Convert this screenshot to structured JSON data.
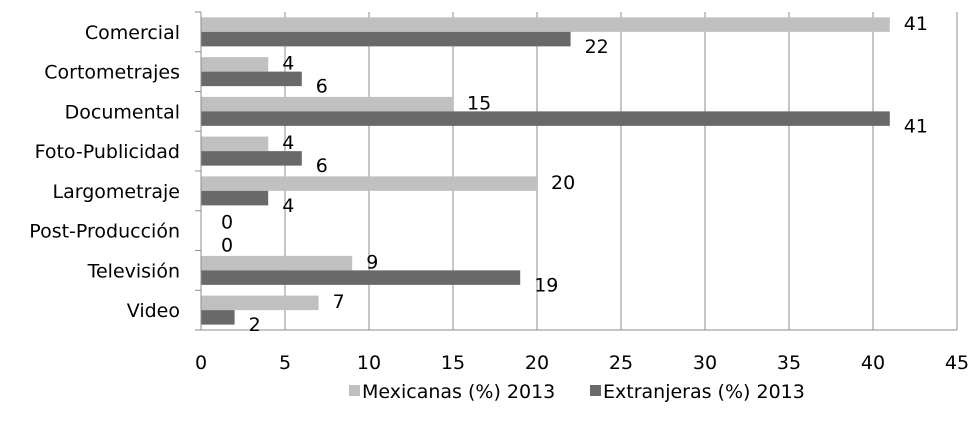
{
  "chart_data": {
    "type": "bar",
    "orientation": "horizontal",
    "categories": [
      "Comercial",
      "Cortometrajes",
      "Documental",
      "Foto-Publicidad",
      "Largometraje",
      "Post-Producción",
      "Televisión",
      "Video"
    ],
    "series": [
      {
        "name": "Mexicanas (%) 2013",
        "values": [
          41,
          4,
          15,
          4,
          20,
          0,
          9,
          7
        ],
        "color": "#c0c0c0"
      },
      {
        "name": "Extranjeras (%) 2013",
        "values": [
          22,
          6,
          41,
          6,
          4,
          0,
          19,
          2
        ],
        "color": "#696969"
      }
    ],
    "xlim": [
      0,
      45
    ],
    "xticks": [
      0,
      5,
      10,
      15,
      20,
      25,
      30,
      35,
      40,
      45
    ],
    "title": "",
    "xlabel": "",
    "ylabel": "",
    "grid": "vertical",
    "legend": "bottom"
  }
}
